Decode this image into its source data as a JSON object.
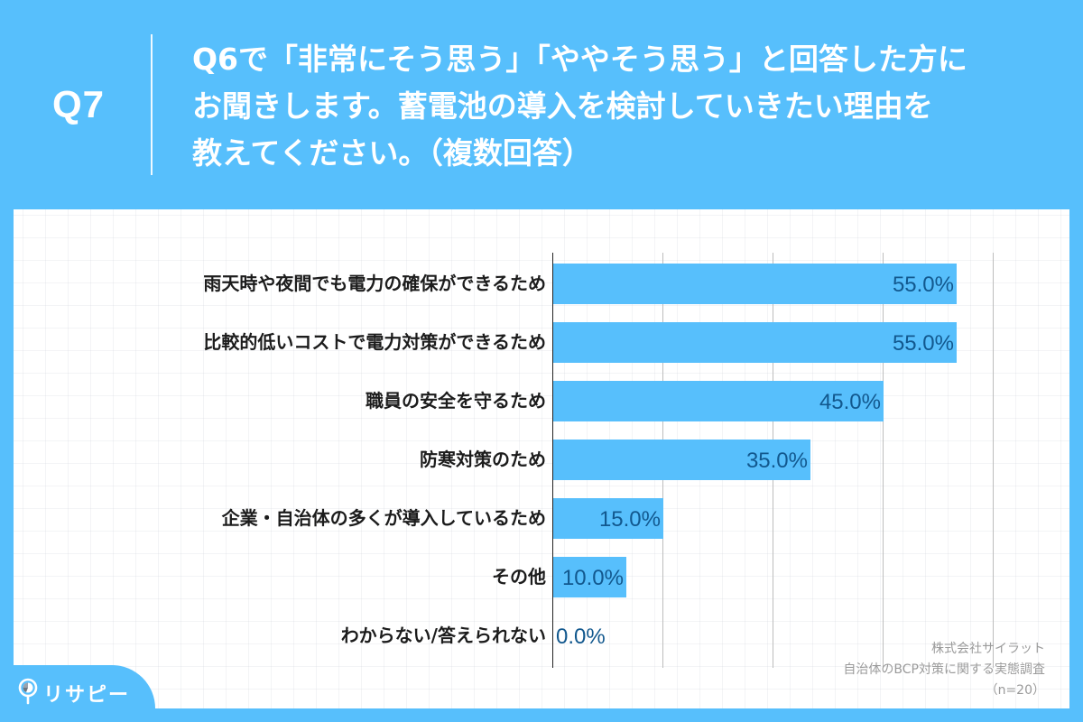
{
  "header": {
    "question_number": "Q7",
    "question_lines": [
      "Q6で「非常にそう思う」「ややそう思う」と回答した方に",
      "お聞きします。蓄電池の導入を検討していきたい理由を",
      "教えてください。（複数回答）"
    ]
  },
  "chart_data": {
    "type": "bar",
    "orientation": "horizontal",
    "title": "Q6で「非常にそう思う」「ややそう思う」と回答した方にお聞きします。蓄電池の導入を検討していきたい理由を教えてください。（複数回答）",
    "categories": [
      "雨天時や夜間でも電力の確保ができるため",
      "比較的低いコストで電力対策ができるため",
      "職員の安全を守るため",
      "防寒対策のため",
      "企業・自治体の多くが導入しているため",
      "その他",
      "わからない/答えられない"
    ],
    "values": [
      55.0,
      55.0,
      45.0,
      35.0,
      15.0,
      10.0,
      0.0
    ],
    "value_labels": [
      "55.0%",
      "55.0%",
      "45.0%",
      "35.0%",
      "15.0%",
      "10.0%",
      "0.0%"
    ],
    "xlabel": "",
    "ylabel": "",
    "xlim": [
      0,
      60
    ],
    "gridlines_at": [
      15,
      30,
      45,
      60
    ],
    "grid": true,
    "legend": null,
    "bar_color": "#57bffc",
    "value_label_color": "#12588e"
  },
  "source": {
    "company": "株式会社サイラット",
    "survey": "自治体のBCP対策に関する実態調査",
    "sample": "（n=20）"
  },
  "logo": {
    "text": "リサピー",
    "icon": "pin-pie-icon"
  },
  "colors": {
    "background": "#57bffc",
    "panel": "#ffffff",
    "bar": "#57bffc",
    "value_text": "#12588e",
    "label_text": "#1c1c1c",
    "source_text": "#9a9a9a"
  }
}
